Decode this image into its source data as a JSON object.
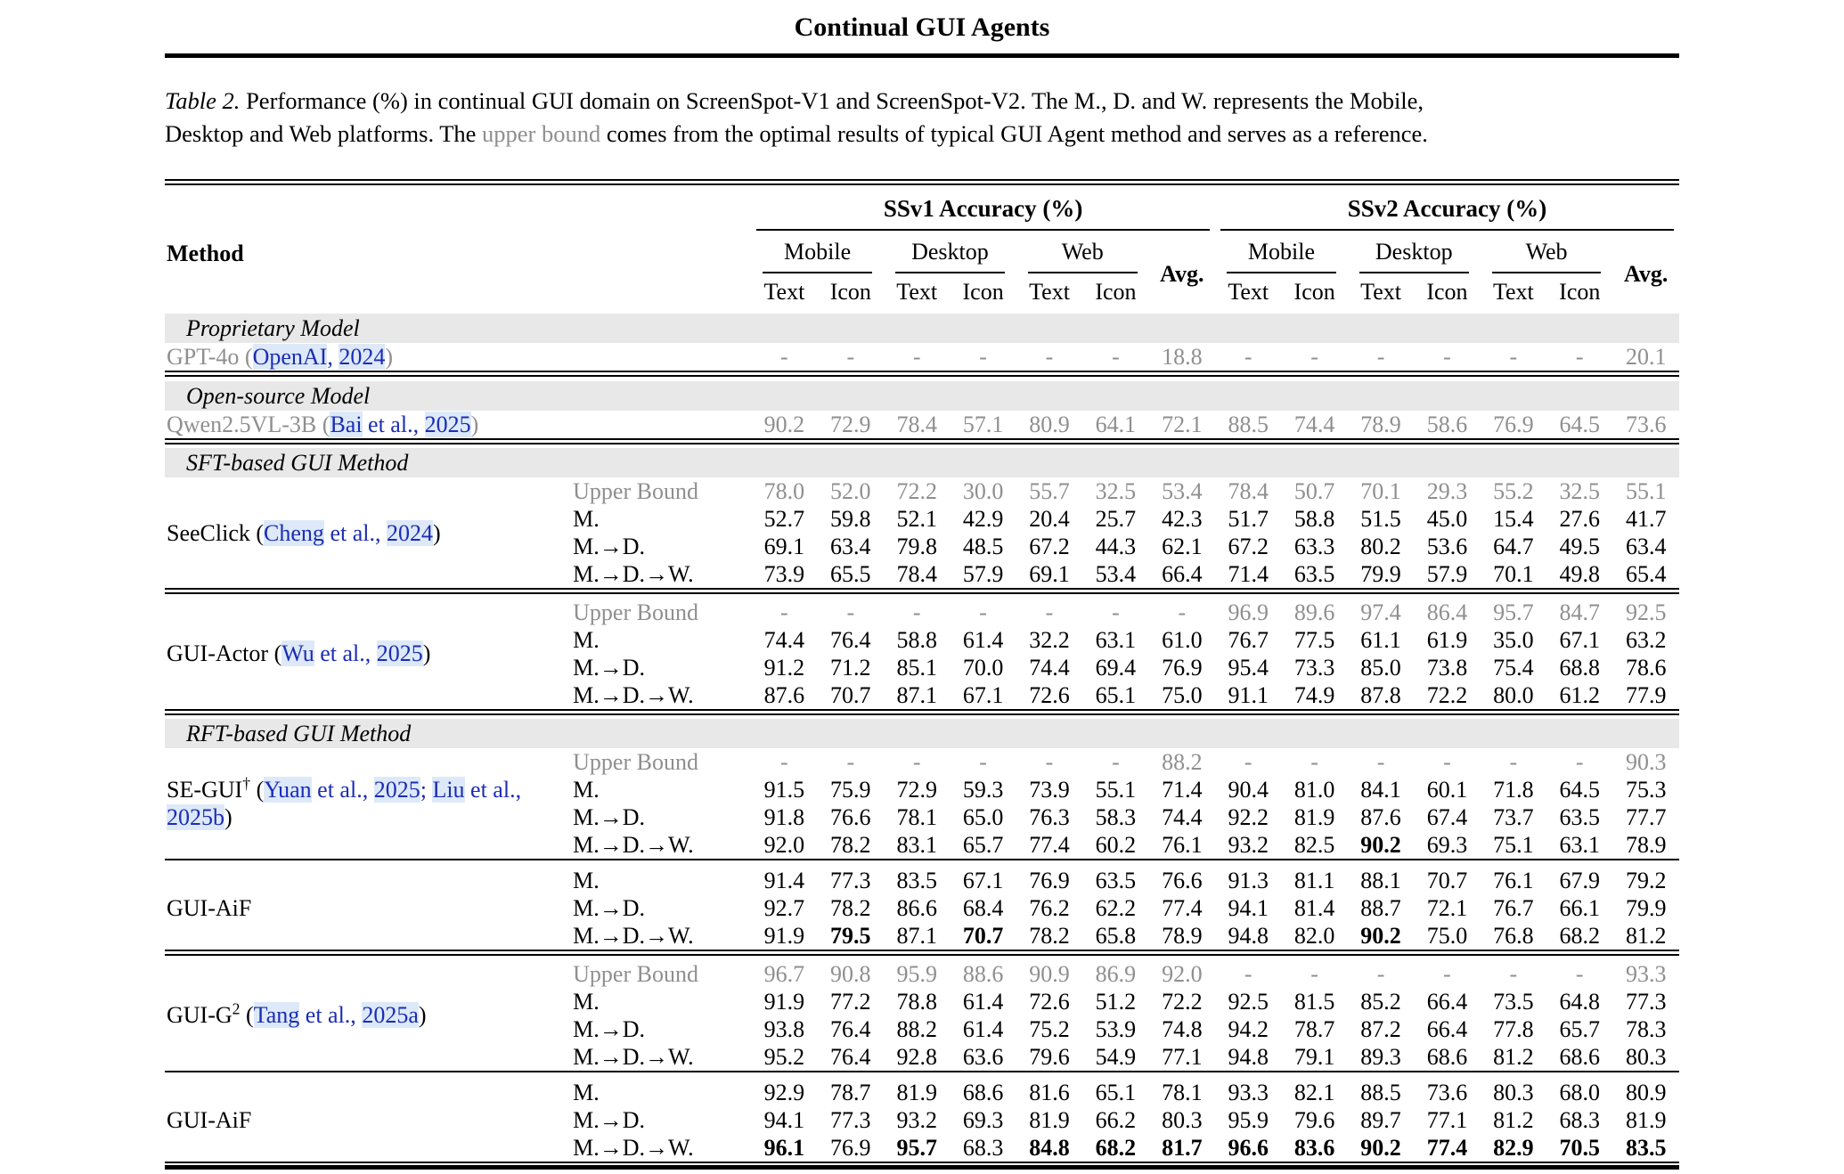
{
  "page": {
    "running_title": "Continual GUI Agents",
    "caption": {
      "label": "Table 2.",
      "line1": "Performance (%) in continual GUI domain on ScreenSpot-V1 and ScreenSpot-V2. The M., D. and W. represents the Mobile,",
      "line2_before": "Desktop and Web platforms. The ",
      "line2_highlight": "upper bound",
      "line2_after": " comes from the optimal results of typical GUI Agent method and serves as a reference."
    }
  },
  "colors": {
    "citation_blue": "#1b2db4",
    "citation_highlight": "#dde9f8",
    "muted_gray": "#8f8f8f",
    "band_gray": "#e8e8e8"
  },
  "table": {
    "header": {
      "method": "Method",
      "groups": [
        "SSv1 Accuracy (%)",
        "SSv2 Accuracy (%)"
      ],
      "platforms": [
        "Mobile",
        "Desktop",
        "Web"
      ],
      "avg": "Avg.",
      "subcols": [
        "Text",
        "Icon"
      ]
    },
    "segments": [
      {
        "type": "band",
        "label": "Proprietary Model"
      },
      {
        "type": "block",
        "method": {
          "name": "GPT-4o",
          "muted": true,
          "cite": [
            {
              "t": "OpenAI",
              "hl": true
            },
            {
              "t": ", ",
              "hl": false
            },
            {
              "t": "2024",
              "hl": true
            }
          ]
        },
        "rows": [
          {
            "seq": "",
            "muted": true,
            "values": [
              "-",
              "-",
              "-",
              "-",
              "-",
              "-",
              "18.8",
              "-",
              "-",
              "-",
              "-",
              "-",
              "-",
              "20.1"
            ]
          }
        ]
      },
      {
        "type": "sep",
        "style": "double"
      },
      {
        "type": "band",
        "label": "Open-source Model"
      },
      {
        "type": "block",
        "method": {
          "name": "Qwen2.5VL-3B",
          "muted": true,
          "cite": [
            {
              "t": "Bai",
              "hl": true
            },
            {
              "t": " et al., ",
              "hl": false
            },
            {
              "t": "2025",
              "hl": true
            }
          ]
        },
        "rows": [
          {
            "seq": "",
            "muted": true,
            "values": [
              "90.2",
              "72.9",
              "78.4",
              "57.1",
              "80.9",
              "64.1",
              "72.1",
              "88.5",
              "74.4",
              "78.9",
              "58.6",
              "76.9",
              "64.5",
              "73.6"
            ]
          }
        ]
      },
      {
        "type": "sep",
        "style": "double"
      },
      {
        "type": "band",
        "label": "SFT-based GUI Method"
      },
      {
        "type": "block",
        "method": {
          "name": "SeeClick",
          "cite": [
            {
              "t": "Cheng",
              "hl": true
            },
            {
              "t": " et al., ",
              "hl": false
            },
            {
              "t": "2024",
              "hl": true
            }
          ]
        },
        "rows": [
          {
            "seq": "Upper Bound",
            "muted": true,
            "values": [
              "78.0",
              "52.0",
              "72.2",
              "30.0",
              "55.7",
              "32.5",
              "53.4",
              "78.4",
              "50.7",
              "70.1",
              "29.3",
              "55.2",
              "32.5",
              "55.1"
            ]
          },
          {
            "seq": "M.",
            "values": [
              "52.7",
              "59.8",
              "52.1",
              "42.9",
              "20.4",
              "25.7",
              "42.3",
              "51.7",
              "58.8",
              "51.5",
              "45.0",
              "15.4",
              "27.6",
              "41.7"
            ]
          },
          {
            "seq": "M.→D.",
            "values": [
              "69.1",
              "63.4",
              "79.8",
              "48.5",
              "67.2",
              "44.3",
              "62.1",
              "67.2",
              "63.3",
              "80.2",
              "53.6",
              "64.7",
              "49.5",
              "63.4"
            ]
          },
          {
            "seq": "M.→D.→W.",
            "values": [
              "73.9",
              "65.5",
              "78.4",
              "57.9",
              "69.1",
              "53.4",
              "66.4",
              "71.4",
              "63.5",
              "79.9",
              "57.9",
              "70.1",
              "49.8",
              "65.4"
            ]
          }
        ]
      },
      {
        "type": "sep",
        "style": "double"
      },
      {
        "type": "block",
        "method": {
          "name": "GUI-Actor",
          "cite": [
            {
              "t": "Wu",
              "hl": true
            },
            {
              "t": " et al., ",
              "hl": false
            },
            {
              "t": "2025",
              "hl": true
            }
          ]
        },
        "rows": [
          {
            "seq": "Upper Bound",
            "muted": true,
            "values": [
              "-",
              "-",
              "-",
              "-",
              "-",
              "-",
              "-",
              "96.9",
              "89.6",
              "97.4",
              "86.4",
              "95.7",
              "84.7",
              "92.5"
            ]
          },
          {
            "seq": "M.",
            "values": [
              "74.4",
              "76.4",
              "58.8",
              "61.4",
              "32.2",
              "63.1",
              "61.0",
              "76.7",
              "77.5",
              "61.1",
              "61.9",
              "35.0",
              "67.1",
              "63.2"
            ]
          },
          {
            "seq": "M.→D.",
            "values": [
              "91.2",
              "71.2",
              "85.1",
              "70.0",
              "74.4",
              "69.4",
              "76.9",
              "95.4",
              "73.3",
              "85.0",
              "73.8",
              "75.4",
              "68.8",
              "78.6"
            ]
          },
          {
            "seq": "M.→D.→W.",
            "values": [
              "87.6",
              "70.7",
              "87.1",
              "67.1",
              "72.6",
              "65.1",
              "75.0",
              "91.1",
              "74.9",
              "87.8",
              "72.2",
              "80.0",
              "61.2",
              "77.9"
            ]
          }
        ]
      },
      {
        "type": "sep",
        "style": "double"
      },
      {
        "type": "band",
        "label": "RFT-based GUI Method"
      },
      {
        "type": "block",
        "method": {
          "name": "SE-GUI",
          "sup": "†",
          "cite": [
            {
              "t": "Yuan",
              "hl": true
            },
            {
              "t": " et al., ",
              "hl": false
            },
            {
              "t": "2025",
              "hl": true
            },
            {
              "t": "; ",
              "hl": false
            },
            {
              "t": "Liu",
              "hl": true
            },
            {
              "t": " et al., ",
              "hl": false
            },
            {
              "t": "2025b",
              "hl": true
            }
          ]
        },
        "rows": [
          {
            "seq": "Upper Bound",
            "muted": true,
            "values": [
              "-",
              "-",
              "-",
              "-",
              "-",
              "-",
              "88.2",
              "-",
              "-",
              "-",
              "-",
              "-",
              "-",
              "90.3"
            ]
          },
          {
            "seq": "M.",
            "values": [
              "91.5",
              "75.9",
              "72.9",
              "59.3",
              "73.9",
              "55.1",
              "71.4",
              "90.4",
              "81.0",
              "84.1",
              "60.1",
              "71.8",
              "64.5",
              "75.3"
            ]
          },
          {
            "seq": "M.→D.",
            "values": [
              "91.8",
              "76.6",
              "78.1",
              "65.0",
              "76.3",
              "58.3",
              "74.4",
              "92.2",
              "81.9",
              "87.6",
              "67.4",
              "73.7",
              "63.5",
              "77.7"
            ]
          },
          {
            "seq": "M.→D.→W.",
            "values": [
              "92.0",
              "78.2",
              "83.1",
              "65.7",
              "77.4",
              "60.2",
              "76.1",
              "93.2",
              "82.5",
              "90.2",
              "69.3",
              "75.1",
              "63.1",
              "78.9"
            ],
            "bold": [
              9
            ]
          }
        ]
      },
      {
        "type": "sep",
        "style": "single"
      },
      {
        "type": "block",
        "method": {
          "name": "GUI-AiF"
        },
        "rows": [
          {
            "seq": "M.",
            "values": [
              "91.4",
              "77.3",
              "83.5",
              "67.1",
              "76.9",
              "63.5",
              "76.6",
              "91.3",
              "81.1",
              "88.1",
              "70.7",
              "76.1",
              "67.9",
              "79.2"
            ]
          },
          {
            "seq": "M.→D.",
            "values": [
              "92.7",
              "78.2",
              "86.6",
              "68.4",
              "76.2",
              "62.2",
              "77.4",
              "94.1",
              "81.4",
              "88.7",
              "72.1",
              "76.7",
              "66.1",
              "79.9"
            ]
          },
          {
            "seq": "M.→D.→W.",
            "values": [
              "91.9",
              "79.5",
              "87.1",
              "70.7",
              "78.2",
              "65.8",
              "78.9",
              "94.8",
              "82.0",
              "90.2",
              "75.0",
              "76.8",
              "68.2",
              "81.2"
            ],
            "bold": [
              1,
              3,
              9
            ]
          }
        ]
      },
      {
        "type": "sep",
        "style": "double"
      },
      {
        "type": "block",
        "method": {
          "name": "GUI-G",
          "sup": "2",
          "cite": [
            {
              "t": "Tang",
              "hl": true
            },
            {
              "t": " et al., ",
              "hl": false
            },
            {
              "t": "2025a",
              "hl": true
            }
          ]
        },
        "rows": [
          {
            "seq": "Upper Bound",
            "muted": true,
            "values": [
              "96.7",
              "90.8",
              "95.9",
              "88.6",
              "90.9",
              "86.9",
              "92.0",
              "-",
              "-",
              "-",
              "-",
              "-",
              "-",
              "93.3"
            ]
          },
          {
            "seq": "M.",
            "values": [
              "91.9",
              "77.2",
              "78.8",
              "61.4",
              "72.6",
              "51.2",
              "72.2",
              "92.5",
              "81.5",
              "85.2",
              "66.4",
              "73.5",
              "64.8",
              "77.3"
            ]
          },
          {
            "seq": "M.→D.",
            "values": [
              "93.8",
              "76.4",
              "88.2",
              "61.4",
              "75.2",
              "53.9",
              "74.8",
              "94.2",
              "78.7",
              "87.2",
              "66.4",
              "77.8",
              "65.7",
              "78.3"
            ]
          },
          {
            "seq": "M.→D.→W.",
            "values": [
              "95.2",
              "76.4",
              "92.8",
              "63.6",
              "79.6",
              "54.9",
              "77.1",
              "94.8",
              "79.1",
              "89.3",
              "68.6",
              "81.2",
              "68.6",
              "80.3"
            ]
          }
        ]
      },
      {
        "type": "sep",
        "style": "single"
      },
      {
        "type": "block",
        "method": {
          "name": "GUI-AiF"
        },
        "rows": [
          {
            "seq": "M.",
            "values": [
              "92.9",
              "78.7",
              "81.9",
              "68.6",
              "81.6",
              "65.1",
              "78.1",
              "93.3",
              "82.1",
              "88.5",
              "73.6",
              "80.3",
              "68.0",
              "80.9"
            ]
          },
          {
            "seq": "M.→D.",
            "values": [
              "94.1",
              "77.3",
              "93.2",
              "69.3",
              "81.9",
              "66.2",
              "80.3",
              "95.9",
              "79.6",
              "89.7",
              "77.1",
              "81.2",
              "68.3",
              "81.9"
            ]
          },
          {
            "seq": "M.→D.→W.",
            "values": [
              "96.1",
              "76.9",
              "95.7",
              "68.3",
              "84.8",
              "68.2",
              "81.7",
              "96.6",
              "83.6",
              "90.2",
              "77.4",
              "82.9",
              "70.5",
              "83.5"
            ],
            "bold": [
              0,
              2,
              4,
              5,
              6,
              7,
              8,
              9,
              10,
              11,
              12,
              13
            ]
          }
        ]
      }
    ]
  }
}
